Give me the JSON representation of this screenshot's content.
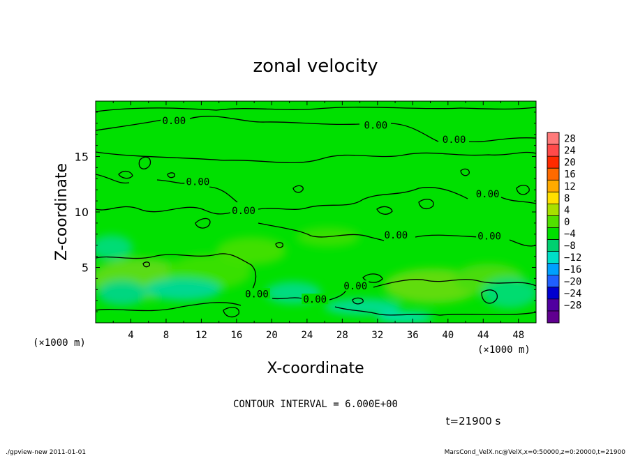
{
  "chart_data": {
    "type": "heatmap",
    "title": "zonal velocity",
    "xlabel": "X-coordinate",
    "ylabel": "Z-coordinate",
    "x_unit": "(×1000 m)",
    "z_unit": "(×1000 m)",
    "xlim": [
      0,
      50
    ],
    "ylim": [
      0,
      20
    ],
    "x_ticks": [
      4,
      8,
      12,
      16,
      20,
      24,
      28,
      32,
      36,
      40,
      44,
      48
    ],
    "y_ticks": [
      5,
      10,
      15
    ],
    "colorbar_levels": [
      28,
      24,
      20,
      16,
      12,
      8,
      4,
      0,
      -4,
      -8,
      -12,
      -16,
      -20,
      -24,
      -28
    ],
    "colorbar_colors": [
      "#ff7a7a",
      "#ff4a4a",
      "#ff2a00",
      "#ff6a00",
      "#ffaa00",
      "#ffe000",
      "#a8e000",
      "#50e000",
      "#00e000",
      "#00d070",
      "#00e0c8",
      "#00a0ff",
      "#2060ff",
      "#0000d0",
      "#5000a0",
      "#600090"
    ],
    "contour_labels": [
      {
        "text": "0.00",
        "x": 8.9,
        "z": 18.1
      },
      {
        "text": "0.00",
        "x": 31.8,
        "z": 17.7
      },
      {
        "text": "0.00",
        "x": 40.7,
        "z": 16.4
      },
      {
        "text": "0.00",
        "x": 11.6,
        "z": 12.6
      },
      {
        "text": "0.00",
        "x": 16.8,
        "z": 10.0
      },
      {
        "text": "0.00",
        "x": 34.1,
        "z": 7.8
      },
      {
        "text": "0.00",
        "x": 44.5,
        "z": 11.5
      },
      {
        "text": "0.00",
        "x": 44.7,
        "z": 7.7
      },
      {
        "text": "0.00",
        "x": 29.5,
        "z": 3.2
      },
      {
        "text": "0.00",
        "x": 18.3,
        "z": 2.5
      },
      {
        "text": "0.00",
        "x": 24.9,
        "z": 2.0
      }
    ],
    "field_min_level": -8,
    "field_max_level": 4
  },
  "contour_interval": "CONTOUR INTERVAL = 6.000E+00",
  "time_label": "t=21900 s",
  "footer_left": "./gpview-new  2011-01-01",
  "footer_right": "MarsCond_VelX.nc@VelX,x=0:50000,z=0:20000,t=21900"
}
